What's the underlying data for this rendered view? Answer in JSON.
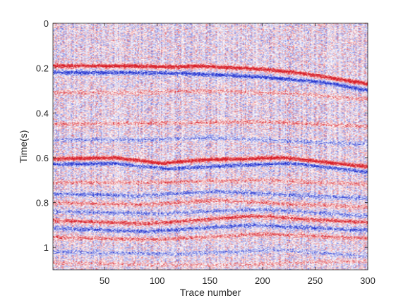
{
  "chart_data": {
    "type": "heatmap",
    "title": "",
    "xlabel": "Trace number",
    "ylabel": "Time(s)",
    "xlim": [
      1,
      300
    ],
    "ylim": [
      0,
      1.1
    ],
    "y_reversed": true,
    "xticks": [
      50,
      100,
      150,
      200,
      250,
      300
    ],
    "yticks": [
      0,
      0.2,
      0.4,
      0.6,
      0.8,
      1
    ],
    "xtick_labels": [
      "50",
      "100",
      "150",
      "200",
      "250",
      "300"
    ],
    "ytick_labels": [
      "0",
      "0.2",
      "0.4",
      "0.6",
      "0.8",
      "1"
    ],
    "colormap": {
      "negative": "#1f2fd0",
      "zero": "#ffffff",
      "positive": "#d8202a"
    },
    "grid": false,
    "reflectors": [
      {
        "trace": [
          1,
          60,
          120,
          135,
          200,
          240,
          300
        ],
        "time": [
          0.19,
          0.19,
          0.195,
          0.19,
          0.205,
          0.225,
          0.27
        ],
        "amplitude": 1.0
      },
      {
        "trace": [
          1,
          70,
          130,
          200,
          260,
          300
        ],
        "time": [
          0.22,
          0.22,
          0.225,
          0.24,
          0.265,
          0.3
        ],
        "amplitude": -0.8
      },
      {
        "trace": [
          1,
          80,
          150,
          230,
          300
        ],
        "time": [
          0.31,
          0.31,
          0.3,
          0.315,
          0.34
        ],
        "amplitude": 0.35
      },
      {
        "trace": [
          1,
          100,
          200,
          300
        ],
        "time": [
          0.45,
          0.445,
          0.44,
          0.46
        ],
        "amplitude": 0.4
      },
      {
        "trace": [
          1,
          90,
          150,
          220,
          300
        ],
        "time": [
          0.52,
          0.52,
          0.51,
          0.525,
          0.54
        ],
        "amplitude": -0.35
      },
      {
        "trace": [
          1,
          60,
          105,
          140,
          220,
          300
        ],
        "time": [
          0.605,
          0.6,
          0.625,
          0.61,
          0.6,
          0.64
        ],
        "amplitude": 1.0
      },
      {
        "trace": [
          1,
          60,
          110,
          150,
          230,
          300
        ],
        "time": [
          0.63,
          0.625,
          0.65,
          0.64,
          0.625,
          0.665
        ],
        "amplitude": -0.7
      },
      {
        "trace": [
          1,
          100,
          200,
          300
        ],
        "time": [
          0.71,
          0.71,
          0.7,
          0.72
        ],
        "amplitude": 0.4
      },
      {
        "trace": [
          1,
          80,
          160,
          240,
          300
        ],
        "time": [
          0.76,
          0.77,
          0.75,
          0.77,
          0.78
        ],
        "amplitude": -0.5
      },
      {
        "trace": [
          1,
          80,
          160,
          240,
          300
        ],
        "time": [
          0.8,
          0.81,
          0.79,
          0.81,
          0.82
        ],
        "amplitude": 0.45
      },
      {
        "trace": [
          1,
          100,
          200,
          300
        ],
        "time": [
          0.84,
          0.85,
          0.83,
          0.86
        ],
        "amplitude": -0.45
      },
      {
        "trace": [
          1,
          90,
          190,
          300
        ],
        "time": [
          0.88,
          0.895,
          0.86,
          0.89
        ],
        "amplitude": 0.7
      },
      {
        "trace": [
          1,
          90,
          190,
          300
        ],
        "time": [
          0.915,
          0.93,
          0.9,
          0.925
        ],
        "amplitude": -0.6
      },
      {
        "trace": [
          1,
          100,
          200,
          300
        ],
        "time": [
          0.955,
          0.965,
          0.94,
          0.96
        ],
        "amplitude": 0.5
      },
      {
        "trace": [
          1,
          120,
          210,
          300
        ],
        "time": [
          1.02,
          1.03,
          1.01,
          1.04
        ],
        "amplitude": -0.35
      },
      {
        "trace": [
          1,
          150,
          300
        ],
        "time": [
          1.07,
          1.08,
          1.06
        ],
        "amplitude": 0.3
      }
    ]
  }
}
